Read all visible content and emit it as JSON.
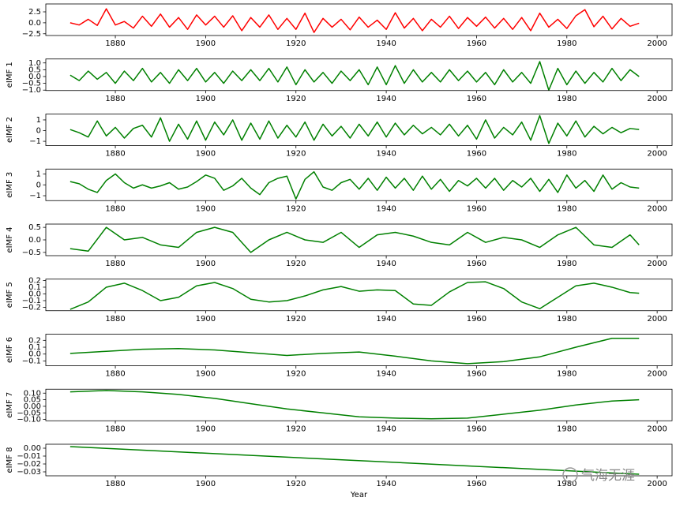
{
  "chart_data": [
    {
      "type": "line",
      "color": "#ff0000",
      "xlim": [
        1864.6,
        2003.3
      ],
      "ylim": [
        -2.9,
        4.3
      ],
      "xticks": [
        1880,
        1900,
        1920,
        1940,
        1960,
        1980,
        2000
      ],
      "yticks": [
        {
          "value": -2.5,
          "label": "−2.5"
        },
        {
          "value": 0,
          "label": "0.0"
        },
        2.5
      ],
      "x": [
        1870,
        1872,
        1874,
        1876,
        1878,
        1880,
        1882,
        1884,
        1886,
        1888,
        1890,
        1892,
        1894,
        1896,
        1898,
        1900,
        1902,
        1904,
        1906,
        1908,
        1910,
        1912,
        1914,
        1916,
        1918,
        1920,
        1922,
        1924,
        1926,
        1928,
        1930,
        1932,
        1934,
        1936,
        1938,
        1940,
        1942,
        1944,
        1946,
        1948,
        1950,
        1952,
        1954,
        1956,
        1958,
        1960,
        1962,
        1964,
        1966,
        1968,
        1970,
        1972,
        1974,
        1976,
        1978,
        1980,
        1982,
        1984,
        1986,
        1988,
        1990,
        1992,
        1994,
        1996
      ],
      "values": [
        0,
        -0.5,
        0.8,
        -0.6,
        3.2,
        -0.5,
        0.3,
        -1.2,
        1.5,
        -0.8,
        2.0,
        -1.0,
        1.2,
        -1.5,
        1.8,
        -0.5,
        1.5,
        -1.0,
        1.6,
        -1.8,
        1.2,
        -1.0,
        1.8,
        -1.5,
        1.0,
        -1.5,
        2.2,
        -2.2,
        1.0,
        -1.0,
        0.8,
        -1.6,
        1.3,
        -1.0,
        0.6,
        -1.5,
        2.3,
        -1.2,
        1.0,
        -1.8,
        0.8,
        -1.0,
        1.5,
        -1.3,
        1.2,
        -0.8,
        1.3,
        -1.2,
        1.0,
        -1.5,
        1.2,
        -1.8,
        2.2,
        -1.0,
        0.8,
        -1.3,
        1.6,
        3.0,
        -0.9,
        1.5,
        -1.4,
        1.0,
        -0.8,
        -0.1
      ]
    },
    {
      "type": "line",
      "color": "#008000",
      "ylabel": "eIMF 1",
      "xlim": [
        1864.6,
        2003.3
      ],
      "ylim": [
        -1.03,
        1.29
      ],
      "xticks": [
        1880,
        1900,
        1920,
        1940,
        1960,
        1980,
        2000
      ],
      "yticks": [
        {
          "value": -1,
          "label": "−1.0"
        },
        {
          "value": -0.5,
          "label": "−0.5"
        },
        {
          "value": 0,
          "label": "0.0"
        },
        0.5,
        {
          "value": 1,
          "label": "1.0"
        }
      ],
      "x": [
        1870,
        1872,
        1874,
        1876,
        1878,
        1880,
        1882,
        1884,
        1886,
        1888,
        1890,
        1892,
        1894,
        1896,
        1898,
        1900,
        1902,
        1904,
        1906,
        1908,
        1910,
        1912,
        1914,
        1916,
        1918,
        1920,
        1922,
        1924,
        1926,
        1928,
        1930,
        1932,
        1934,
        1936,
        1938,
        1940,
        1942,
        1944,
        1946,
        1948,
        1950,
        1952,
        1954,
        1956,
        1958,
        1960,
        1962,
        1964,
        1966,
        1968,
        1970,
        1972,
        1974,
        1976,
        1978,
        1980,
        1982,
        1984,
        1986,
        1988,
        1990,
        1992,
        1994,
        1996
      ],
      "values": [
        0.1,
        -0.3,
        0.4,
        -0.2,
        0.3,
        -0.5,
        0.4,
        -0.3,
        0.6,
        -0.4,
        0.3,
        -0.5,
        0.5,
        -0.3,
        0.6,
        -0.4,
        0.3,
        -0.5,
        0.4,
        -0.3,
        0.5,
        -0.3,
        0.6,
        -0.4,
        0.7,
        -0.6,
        0.5,
        -0.4,
        0.3,
        -0.5,
        0.4,
        -0.3,
        0.5,
        -0.6,
        0.7,
        -0.6,
        0.8,
        -0.5,
        0.5,
        -0.4,
        0.3,
        -0.4,
        0.5,
        -0.3,
        0.4,
        -0.4,
        0.3,
        -0.6,
        0.5,
        -0.4,
        0.3,
        -0.5,
        1.1,
        -1.0,
        0.6,
        -0.6,
        0.4,
        -0.5,
        0.3,
        -0.4,
        0.6,
        -0.3,
        0.5,
        0.0
      ]
    },
    {
      "type": "line",
      "color": "#008000",
      "ylabel": "eIMF 2",
      "xlim": [
        1864.6,
        2003.3
      ],
      "ylim": [
        -1.4,
        1.55
      ],
      "xticks": [
        1880,
        1900,
        1920,
        1940,
        1960,
        1980,
        2000
      ],
      "yticks": [
        {
          "value": -1,
          "label": "−1"
        },
        0,
        1
      ],
      "x": [
        1870,
        1872,
        1874,
        1876,
        1878,
        1880,
        1882,
        1884,
        1886,
        1888,
        1890,
        1892,
        1894,
        1896,
        1898,
        1900,
        1902,
        1904,
        1906,
        1908,
        1910,
        1912,
        1914,
        1916,
        1918,
        1920,
        1922,
        1924,
        1926,
        1928,
        1930,
        1932,
        1934,
        1936,
        1938,
        1940,
        1942,
        1944,
        1946,
        1948,
        1950,
        1952,
        1954,
        1956,
        1958,
        1960,
        1962,
        1964,
        1966,
        1968,
        1970,
        1972,
        1974,
        1976,
        1978,
        1980,
        1982,
        1984,
        1986,
        1988,
        1990,
        1992,
        1994,
        1996
      ],
      "values": [
        0.1,
        -0.2,
        -0.6,
        0.9,
        -0.5,
        0.3,
        -0.7,
        0.2,
        0.5,
        -0.6,
        1.2,
        -1.0,
        0.6,
        -0.8,
        0.9,
        -0.9,
        0.8,
        -0.4,
        1.0,
        -0.9,
        0.7,
        -0.8,
        0.9,
        -0.7,
        0.5,
        -0.6,
        0.8,
        -0.9,
        0.6,
        -0.5,
        0.4,
        -0.7,
        0.6,
        -0.5,
        0.8,
        -0.6,
        0.7,
        -0.4,
        0.5,
        -0.3,
        0.3,
        -0.4,
        0.6,
        -0.5,
        0.5,
        -0.8,
        1.0,
        -0.7,
        0.3,
        -0.4,
        0.8,
        -0.9,
        1.4,
        -1.2,
        0.7,
        -0.5,
        0.9,
        -0.6,
        0.4,
        -0.3,
        0.3,
        -0.2,
        0.2,
        0.1
      ]
    },
    {
      "type": "line",
      "color": "#008000",
      "ylabel": "eIMF 3",
      "xlim": [
        1864.6,
        2003.3
      ],
      "ylim": [
        -1.45,
        1.45
      ],
      "xticks": [
        1880,
        1900,
        1920,
        1940,
        1960,
        1980,
        2000
      ],
      "yticks": [
        {
          "value": -1,
          "label": "−1"
        },
        0,
        1
      ],
      "x": [
        1870,
        1872,
        1874,
        1876,
        1878,
        1880,
        1882,
        1884,
        1886,
        1888,
        1890,
        1892,
        1894,
        1896,
        1898,
        1900,
        1902,
        1904,
        1906,
        1908,
        1910,
        1912,
        1914,
        1916,
        1918,
        1920,
        1922,
        1924,
        1926,
        1928,
        1930,
        1932,
        1934,
        1936,
        1938,
        1940,
        1942,
        1944,
        1946,
        1948,
        1950,
        1952,
        1954,
        1956,
        1958,
        1960,
        1962,
        1964,
        1966,
        1968,
        1970,
        1972,
        1974,
        1976,
        1978,
        1980,
        1982,
        1984,
        1986,
        1988,
        1990,
        1992,
        1994,
        1996
      ],
      "values": [
        0.3,
        0.1,
        -0.4,
        -0.7,
        0.4,
        1.0,
        0.2,
        -0.3,
        0.0,
        -0.3,
        -0.1,
        0.2,
        -0.4,
        -0.2,
        0.3,
        0.9,
        0.6,
        -0.5,
        -0.1,
        0.6,
        -0.3,
        -0.9,
        0.2,
        0.6,
        0.8,
        -1.3,
        0.5,
        1.2,
        -0.2,
        -0.5,
        0.2,
        0.5,
        -0.4,
        0.6,
        -0.5,
        0.7,
        -0.3,
        0.6,
        -0.5,
        0.8,
        -0.4,
        0.5,
        -0.6,
        0.4,
        -0.1,
        0.6,
        -0.3,
        0.6,
        -0.5,
        0.4,
        -0.2,
        0.6,
        -0.6,
        0.5,
        -0.7,
        0.9,
        -0.3,
        0.4,
        -0.6,
        0.9,
        -0.4,
        0.2,
        -0.2,
        -0.3
      ]
    },
    {
      "type": "line",
      "color": "#008000",
      "ylabel": "eIMF 4",
      "xlim": [
        1864.6,
        2003.3
      ],
      "ylim": [
        -0.63,
        0.63
      ],
      "xticks": [
        1880,
        1900,
        1920,
        1940,
        1960,
        1980,
        2000
      ],
      "yticks": [
        {
          "value": -0.5,
          "label": "−0.5"
        },
        {
          "value": 0,
          "label": "0.0"
        },
        0.5
      ],
      "x": [
        1870,
        1874,
        1878,
        1882,
        1886,
        1890,
        1894,
        1898,
        1902,
        1906,
        1910,
        1914,
        1918,
        1922,
        1926,
        1930,
        1934,
        1938,
        1942,
        1946,
        1950,
        1954,
        1958,
        1962,
        1966,
        1970,
        1974,
        1978,
        1982,
        1986,
        1990,
        1994,
        1996
      ],
      "values": [
        -0.35,
        -0.45,
        0.5,
        0.0,
        0.1,
        -0.2,
        -0.3,
        0.3,
        0.5,
        0.3,
        -0.5,
        0.0,
        0.3,
        0.0,
        -0.1,
        0.3,
        -0.3,
        0.2,
        0.3,
        0.15,
        -0.1,
        -0.2,
        0.3,
        -0.1,
        0.1,
        0.0,
        -0.3,
        0.2,
        0.5,
        -0.2,
        -0.3,
        0.2,
        -0.2
      ]
    },
    {
      "type": "line",
      "color": "#008000",
      "ylabel": "eIMF 5",
      "xlim": [
        1864.6,
        2003.3
      ],
      "ylim": [
        -0.25,
        0.22
      ],
      "xticks": [
        1880,
        1900,
        1920,
        1940,
        1960,
        1980,
        2000
      ],
      "yticks": [
        {
          "value": -0.2,
          "label": "−0.2"
        },
        {
          "value": -0.1,
          "label": "−0.1"
        },
        {
          "value": 0,
          "label": "0.0"
        },
        0.1,
        0.2
      ],
      "x": [
        1870,
        1874,
        1878,
        1882,
        1886,
        1890,
        1894,
        1898,
        1902,
        1906,
        1910,
        1914,
        1918,
        1922,
        1926,
        1930,
        1934,
        1938,
        1942,
        1946,
        1950,
        1954,
        1958,
        1962,
        1966,
        1970,
        1974,
        1978,
        1982,
        1986,
        1990,
        1994,
        1996
      ],
      "values": [
        -0.23,
        -0.12,
        0.1,
        0.16,
        0.05,
        -0.1,
        -0.05,
        0.12,
        0.17,
        0.08,
        -0.08,
        -0.12,
        -0.1,
        -0.03,
        0.06,
        0.11,
        0.04,
        0.06,
        0.05,
        -0.15,
        -0.17,
        0.03,
        0.17,
        0.18,
        0.08,
        -0.12,
        -0.22,
        -0.05,
        0.12,
        0.16,
        0.1,
        0.02,
        0.01
      ]
    },
    {
      "type": "line",
      "color": "#008000",
      "ylabel": "eIMF 6",
      "xlim": [
        1864.6,
        2003.3
      ],
      "ylim": [
        -0.17,
        0.29
      ],
      "xticks": [
        1880,
        1900,
        1920,
        1940,
        1960,
        1980,
        2000
      ],
      "yticks": [
        {
          "value": -0.1,
          "label": "−0.1"
        },
        {
          "value": 0,
          "label": "0.0"
        },
        0.1,
        0.2
      ],
      "x": [
        1870,
        1878,
        1886,
        1894,
        1902,
        1910,
        1918,
        1926,
        1934,
        1942,
        1950,
        1958,
        1966,
        1974,
        1982,
        1990,
        1996
      ],
      "values": [
        0.01,
        0.04,
        0.07,
        0.08,
        0.06,
        0.02,
        -0.02,
        0.01,
        0.03,
        -0.03,
        -0.1,
        -0.14,
        -0.11,
        -0.04,
        0.1,
        0.23,
        0.23
      ]
    },
    {
      "type": "line",
      "color": "#008000",
      "ylabel": "eIMF 7",
      "xlim": [
        1864.6,
        2003.3
      ],
      "ylim": [
        -0.11,
        0.13
      ],
      "xticks": [
        1880,
        1900,
        1920,
        1940,
        1960,
        1980,
        2000
      ],
      "yticks": [
        {
          "value": -0.1,
          "label": "−0.10"
        },
        {
          "value": -0.05,
          "label": "−0.05"
        },
        {
          "value": 0,
          "label": "0.00"
        },
        0.05,
        {
          "value": 0.1,
          "label": "0.10"
        }
      ],
      "x": [
        1870,
        1878,
        1886,
        1894,
        1902,
        1910,
        1918,
        1926,
        1934,
        1942,
        1950,
        1958,
        1966,
        1974,
        1982,
        1990,
        1996
      ],
      "values": [
        0.11,
        0.12,
        0.11,
        0.09,
        0.06,
        0.02,
        -0.02,
        -0.05,
        -0.08,
        -0.09,
        -0.095,
        -0.09,
        -0.06,
        -0.03,
        0.01,
        0.04,
        0.05
      ]
    },
    {
      "type": "line",
      "color": "#008000",
      "ylabel": "eIMF 8",
      "xlabel": "Year",
      "xlim": [
        1864.6,
        2003.3
      ],
      "ylim": [
        -0.035,
        0.005
      ],
      "xticks": [
        1880,
        1900,
        1920,
        1940,
        1960,
        1980,
        2000
      ],
      "yticks": [
        {
          "value": -0.03,
          "label": "−0.03"
        },
        {
          "value": -0.02,
          "label": "−0.02"
        },
        {
          "value": -0.01,
          "label": "−0.01"
        },
        {
          "value": 0,
          "label": "0.00"
        }
      ],
      "x": [
        1870,
        1996
      ],
      "values": [
        0.002,
        -0.033
      ]
    }
  ],
  "watermark": "气海无涯"
}
